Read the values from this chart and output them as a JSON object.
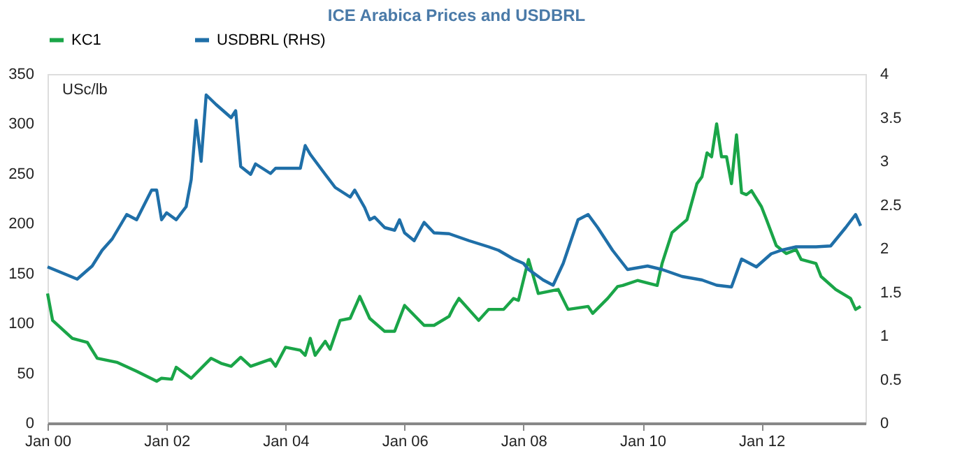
{
  "chart_data": {
    "type": "line",
    "title": "ICE Arabica Prices and USDBRL",
    "ylabel": "USc/lb",
    "xlim": [
      "2000-01",
      "2013-10"
    ],
    "xticks": [
      {
        "value": "2000-01",
        "label": "Jan 00"
      },
      {
        "value": "2002-01",
        "label": "Jan 02"
      },
      {
        "value": "2004-01",
        "label": "Jan 04"
      },
      {
        "value": "2006-01",
        "label": "Jan 06"
      },
      {
        "value": "2008-01",
        "label": "Jan 08"
      },
      {
        "value": "2010-01",
        "label": "Jan 10"
      },
      {
        "value": "2012-01",
        "label": "Jan 12"
      }
    ],
    "ylim": [
      0,
      350
    ],
    "yticks": [
      0,
      50,
      100,
      150,
      200,
      250,
      300,
      350
    ],
    "y2lim": [
      0,
      4
    ],
    "y2ticks": [
      0,
      0.5,
      1,
      1.5,
      2,
      2.5,
      3,
      3.5,
      4
    ],
    "grid": false,
    "legend": "top",
    "marker": "none",
    "line_style": "solid",
    "series": [
      {
        "name": "KC1",
        "color": "#1aa548",
        "x": [
          "2000-01",
          "2000-02",
          "2000-06",
          "2000-09",
          "2000-11",
          "2001-03",
          "2001-07",
          "2001-11",
          "2001-12",
          "2002-02",
          "2002-03",
          "2002-06",
          "2002-10",
          "2002-12",
          "2003-02",
          "2003-04",
          "2003-06",
          "2003-10",
          "2003-11",
          "2004-01",
          "2004-04",
          "2004-05",
          "2004-06",
          "2004-07",
          "2004-09",
          "2004-10",
          "2004-12",
          "2005-02",
          "2005-04",
          "2005-06",
          "2005-09",
          "2005-11",
          "2006-01",
          "2006-05",
          "2006-07",
          "2006-10",
          "2006-11",
          "2006-12",
          "2007-04",
          "2007-06",
          "2007-09",
          "2007-11",
          "2007-12",
          "2008-02",
          "2008-04",
          "2008-08",
          "2008-10",
          "2009-02",
          "2009-03",
          "2009-06",
          "2009-08",
          "2009-09",
          "2009-12",
          "2010-04",
          "2010-05",
          "2010-07",
          "2010-10",
          "2010-12",
          "2011-01",
          "2011-02",
          "2011-03",
          "2011-04",
          "2011-05",
          "2011-06",
          "2011-07",
          "2011-08",
          "2011-09",
          "2011-10",
          "2011-11",
          "2012-01",
          "2012-02",
          "2012-04",
          "2012-06",
          "2012-08",
          "2012-09",
          "2012-12",
          "2013-01",
          "2013-04",
          "2013-07",
          "2013-08",
          "2013-09"
        ],
        "values": [
          130,
          103,
          85,
          81,
          65,
          61,
          52,
          42,
          45,
          44,
          56,
          45,
          65,
          60,
          57,
          66,
          57,
          64,
          57,
          76,
          73,
          68,
          85,
          68,
          82,
          74,
          103,
          105,
          127,
          105,
          92,
          92,
          118,
          98,
          98,
          107,
          117,
          125,
          103,
          114,
          114,
          125,
          123,
          164,
          130,
          134,
          114,
          117,
          110,
          125,
          137,
          138,
          143,
          138,
          160,
          191,
          204,
          240,
          247,
          271,
          267,
          300,
          267,
          267,
          240,
          289,
          231,
          229,
          233,
          217,
          204,
          178,
          170,
          174,
          164,
          160,
          147,
          134,
          125,
          114,
          117
        ]
      },
      {
        "name": "USDBRL (RHS)",
        "color": "#1f6fa8",
        "axis": "y2",
        "x": [
          "2000-01",
          "2000-07",
          "2000-10",
          "2000-12",
          "2001-02",
          "2001-05",
          "2001-07",
          "2001-10",
          "2001-11",
          "2001-12",
          "2002-01",
          "2002-03",
          "2002-05",
          "2002-06",
          "2002-07",
          "2002-08",
          "2002-09",
          "2002-11",
          "2003-02",
          "2003-03",
          "2003-04",
          "2003-06",
          "2003-07",
          "2003-10",
          "2003-11",
          "2004-01",
          "2004-04",
          "2004-05",
          "2004-06",
          "2004-09",
          "2004-11",
          "2005-02",
          "2005-03",
          "2005-05",
          "2005-06",
          "2005-07",
          "2005-09",
          "2005-11",
          "2005-12",
          "2006-01",
          "2006-03",
          "2006-05",
          "2006-07",
          "2006-10",
          "2007-02",
          "2007-06",
          "2007-08",
          "2007-11",
          "2008-01",
          "2008-02",
          "2008-05",
          "2008-07",
          "2008-09",
          "2008-12",
          "2009-02",
          "2009-04",
          "2009-07",
          "2009-10",
          "2010-02",
          "2010-05",
          "2010-09",
          "2011-01",
          "2011-04",
          "2011-07",
          "2011-09",
          "2011-12",
          "2012-03",
          "2012-05",
          "2012-08",
          "2012-12",
          "2013-03",
          "2013-06",
          "2013-08",
          "2013-09"
        ],
        "values": [
          1.79,
          1.65,
          1.8,
          1.98,
          2.11,
          2.39,
          2.33,
          2.67,
          2.67,
          2.33,
          2.41,
          2.33,
          2.48,
          2.79,
          3.47,
          3.0,
          3.76,
          3.65,
          3.5,
          3.58,
          2.94,
          2.85,
          2.97,
          2.86,
          2.92,
          2.92,
          2.92,
          3.18,
          3.08,
          2.85,
          2.7,
          2.59,
          2.67,
          2.47,
          2.33,
          2.36,
          2.24,
          2.21,
          2.33,
          2.18,
          2.09,
          2.3,
          2.18,
          2.17,
          2.09,
          2.02,
          1.98,
          1.88,
          1.83,
          1.76,
          1.64,
          1.58,
          1.83,
          2.33,
          2.39,
          2.24,
          1.98,
          1.76,
          1.8,
          1.76,
          1.68,
          1.64,
          1.58,
          1.56,
          1.88,
          1.79,
          1.94,
          1.98,
          2.02,
          2.02,
          2.03,
          2.24,
          2.39,
          2.26
        ]
      }
    ]
  }
}
